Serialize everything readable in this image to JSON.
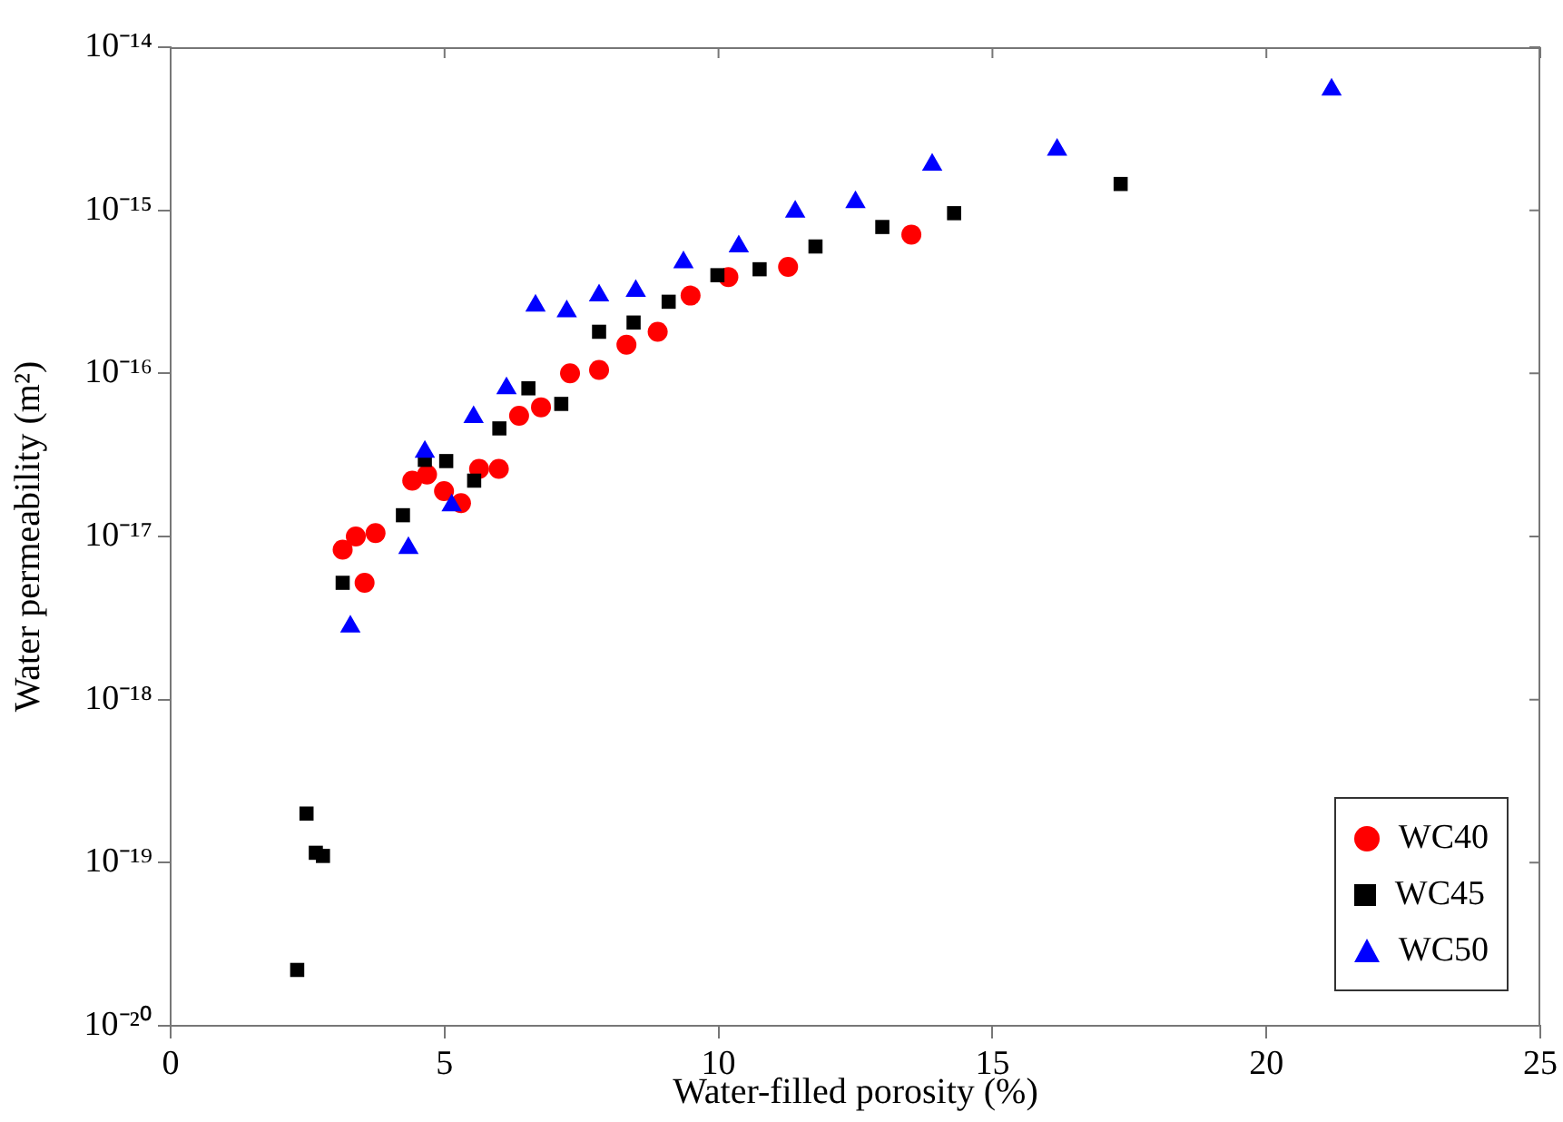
{
  "chart_data": {
    "type": "scatter",
    "xlabel": "Water-filled porosity (%)",
    "ylabel": "Water permeability (m²)",
    "log": "y",
    "grid": false,
    "legend": "bottom right",
    "xlim": [
      0,
      25
    ],
    "xticks": [
      0,
      5,
      10,
      15,
      20,
      25
    ],
    "ylim": [
      1e-20,
      1e-14
    ],
    "yticks": [
      {
        "value": 1e-20,
        "label": "10⁻²⁰"
      },
      {
        "value": 1e-19,
        "label": "10⁻¹⁹"
      },
      {
        "value": 1e-18,
        "label": "10⁻¹⁸"
      },
      {
        "value": 1e-17,
        "label": "10⁻¹⁷"
      },
      {
        "value": 1e-16,
        "label": "10⁻¹⁶"
      },
      {
        "value": 1e-15,
        "label": "10⁻¹⁵"
      },
      {
        "value": 1e-14,
        "label": "10⁻¹⁴"
      }
    ],
    "series": [
      {
        "name": "WC40",
        "color": "#ff0000",
        "marker": "circle",
        "x": [
          3.14,
          3.38,
          3.74,
          3.54,
          4.41,
          4.68,
          4.99,
          5.3,
          5.63,
          5.99,
          6.36,
          6.76,
          7.29,
          7.82,
          8.32,
          8.89,
          9.49,
          10.18,
          11.27,
          13.52
        ],
        "values": [
          8.3e-18,
          1e-17,
          1.05e-17,
          5.2e-18,
          2.2e-17,
          2.4e-17,
          1.9e-17,
          1.6e-17,
          2.6e-17,
          2.6e-17,
          5.5e-17,
          6.2e-17,
          1e-16,
          1.05e-16,
          1.5e-16,
          1.8e-16,
          3e-16,
          3.9e-16,
          4.5e-16,
          7.1e-16
        ]
      },
      {
        "name": "WC45",
        "color": "#000000",
        "marker": "square",
        "x": [
          2.31,
          2.48,
          2.65,
          2.78,
          3.14,
          4.24,
          4.64,
          5.03,
          5.54,
          6.0,
          6.53,
          7.13,
          7.82,
          8.45,
          9.09,
          9.98,
          10.75,
          11.77,
          12.99,
          14.3,
          17.34
        ],
        "values": [
          2.2e-20,
          2e-19,
          1.15e-19,
          1.1e-19,
          5.2e-18,
          1.35e-17,
          2.95e-17,
          2.9e-17,
          2.2e-17,
          4.6e-17,
          8.1e-17,
          6.5e-17,
          1.8e-16,
          2.05e-16,
          2.75e-16,
          4e-16,
          4.35e-16,
          6e-16,
          7.9e-16,
          9.6e-16,
          1.45e-15
        ]
      },
      {
        "name": "WC50",
        "color": "#0000ff",
        "marker": "triangle",
        "x": [
          3.28,
          4.34,
          4.64,
          5.13,
          5.53,
          6.13,
          6.66,
          7.23,
          7.82,
          8.49,
          9.36,
          10.37,
          11.4,
          12.5,
          13.9,
          16.18,
          21.19
        ],
        "values": [
          2.8e-18,
          8.5e-18,
          3.3e-17,
          1.55e-17,
          5.4e-17,
          8.1e-17,
          2.6e-16,
          2.4e-16,
          3e-16,
          3.2e-16,
          4.8e-16,
          6e-16,
          9.8e-16,
          1.12e-15,
          1.9e-15,
          2.35e-15,
          5.5e-15
        ]
      }
    ]
  }
}
